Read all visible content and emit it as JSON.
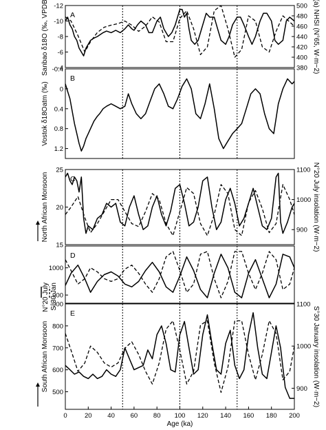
{
  "figure": {
    "x_axis_label": "Age (ka)",
    "x_ticks": [
      "0",
      "20",
      "40",
      "60",
      "80",
      "100",
      "120",
      "140",
      "160",
      "180",
      "200"
    ],
    "vertical_lines_at_age": [
      50,
      100,
      150
    ]
  },
  "chart_data": [
    {
      "type": "line",
      "panel": "A",
      "ylabel_left": "Sanbao δ18O (‰, VPDB)",
      "ylabel_right": "(a) NHSI (N°65, W·m−2)",
      "xlim": [
        0,
        200
      ],
      "ylim_left": [
        -12,
        -4
      ],
      "left_inverted": true,
      "ylim_right": [
        380,
        500
      ],
      "left_ticks": [
        "-12",
        "-10",
        "-8",
        "-6",
        "-4"
      ],
      "right_ticks": [
        "500",
        "480",
        "460",
        "440",
        "420",
        "400",
        "380"
      ],
      "series": [
        {
          "axis": "left",
          "style": "solid",
          "x": [
            0,
            2,
            4,
            6,
            8,
            10,
            12,
            14,
            16,
            18,
            20,
            22,
            25,
            28,
            30,
            33,
            36,
            40,
            44,
            48,
            52,
            55,
            58,
            60,
            63,
            66,
            70,
            73,
            76,
            80,
            83,
            86,
            90,
            93,
            96,
            100,
            102,
            104,
            106,
            108,
            110,
            113,
            116,
            120,
            123,
            126,
            130,
            133,
            136,
            140,
            143,
            146,
            150,
            153,
            156,
            160,
            163,
            166,
            170,
            173,
            176,
            180,
            183,
            186,
            190,
            193,
            196,
            200
          ],
          "y": [
            -10.0,
            -10.5,
            -9.5,
            -9.0,
            -8.0,
            -7.5,
            -6.5,
            -6.0,
            -5.5,
            -6.5,
            -7.0,
            -7.5,
            -7.8,
            -8.0,
            -8.2,
            -8.5,
            -8.7,
            -8.5,
            -8.8,
            -8.5,
            -9.0,
            -9.5,
            -9.0,
            -8.8,
            -9.5,
            -10.0,
            -9.5,
            -8.5,
            -8.5,
            -10.0,
            -10.5,
            -9.0,
            -8.0,
            -8.5,
            -9.5,
            -11.5,
            -11.5,
            -10.5,
            -11.0,
            -9.0,
            -7.5,
            -7.0,
            -7.5,
            -9.5,
            -11.0,
            -10.5,
            -10.5,
            -9.0,
            -7.5,
            -7.0,
            -8.0,
            -9.5,
            -10.5,
            -10.5,
            -9.5,
            -8.0,
            -7.0,
            -8.0,
            -10.0,
            -11.0,
            -11.0,
            -10.0,
            -7.5,
            -7.0,
            -7.5,
            -10.0,
            -10.5,
            -10.0
          ]
        },
        {
          "axis": "right",
          "style": "dashed",
          "x": [
            0,
            5,
            11,
            17,
            22,
            28,
            34,
            40,
            46,
            52,
            58,
            64,
            70,
            76,
            82,
            88,
            94,
            100,
            106,
            112,
            118,
            124,
            130,
            136,
            142,
            148,
            154,
            160,
            166,
            172,
            178,
            184,
            190,
            196,
            200
          ],
          "y": [
            478,
            470,
            442,
            410,
            430,
            448,
            458,
            462,
            465,
            470,
            462,
            450,
            460,
            478,
            468,
            430,
            430,
            475,
            490,
            455,
            405,
            420,
            490,
            500,
            455,
            400,
            415,
            480,
            470,
            420,
            410,
            450,
            480,
            468,
            460
          ]
        }
      ]
    },
    {
      "type": "line",
      "panel": "B",
      "ylabel_left": "Vostok δ18Oatm (‰)",
      "xlim": [
        0,
        200
      ],
      "ylim_left": [
        -0.4,
        1.4
      ],
      "left_inverted": true,
      "left_ticks": [
        "-0.4",
        "0",
        "0.4",
        "0.8",
        "1.2"
      ],
      "series": [
        {
          "axis": "left",
          "style": "solid",
          "x": [
            0,
            2,
            4,
            6,
            8,
            10,
            12,
            14,
            16,
            18,
            20,
            22,
            25,
            28,
            30,
            33,
            36,
            40,
            44,
            48,
            52,
            55,
            58,
            62,
            66,
            70,
            74,
            78,
            82,
            86,
            90,
            94,
            98,
            102,
            106,
            110,
            114,
            118,
            122,
            126,
            130,
            134,
            138,
            142,
            146,
            150,
            154,
            158,
            162,
            166,
            170,
            174,
            178,
            182,
            186,
            190,
            194,
            198,
            200
          ],
          "y": [
            -0.1,
            0.05,
            0.2,
            0.45,
            0.7,
            0.9,
            1.1,
            1.25,
            1.15,
            1.0,
            0.9,
            0.8,
            0.65,
            0.55,
            0.5,
            0.4,
            0.35,
            0.3,
            0.35,
            0.4,
            0.35,
            0.1,
            0.3,
            0.5,
            0.6,
            0.5,
            0.25,
            0.0,
            -0.1,
            0.1,
            0.35,
            0.4,
            0.2,
            -0.05,
            -0.2,
            0.0,
            0.5,
            0.6,
            0.3,
            -0.1,
            0.4,
            1.0,
            1.2,
            1.05,
            0.9,
            0.8,
            0.7,
            0.4,
            0.1,
            0.0,
            0.1,
            0.5,
            0.8,
            0.9,
            0.3,
            0.0,
            -0.2,
            -0.1,
            -0.15
          ]
        }
      ]
    },
    {
      "type": "line",
      "panel": "C",
      "ylabel_left": "North African Monsoon",
      "ylabel_right": "N°20 July insolation (W·m−2)",
      "xlim": [
        0,
        200
      ],
      "ylim_left": [
        15,
        25
      ],
      "ylim_right": [
        850,
        1100
      ],
      "left_ticks": [
        "15",
        "20",
        "25"
      ],
      "right_ticks": [
        "900",
        "1000",
        "1100"
      ],
      "series": [
        {
          "axis": "left",
          "style": "solid",
          "x": [
            0,
            2,
            4,
            6,
            8,
            10,
            12,
            14,
            16,
            18,
            20,
            24,
            28,
            32,
            36,
            40,
            44,
            48,
            52,
            56,
            60,
            64,
            68,
            72,
            76,
            80,
            84,
            88,
            92,
            96,
            100,
            104,
            108,
            112,
            116,
            120,
            124,
            128,
            132,
            136,
            140,
            144,
            148,
            152,
            156,
            160,
            164,
            168,
            172,
            176,
            180,
            184,
            186,
            188,
            190,
            194,
            198,
            200
          ],
          "y": [
            24.0,
            24.5,
            23.5,
            23.0,
            24.0,
            23.5,
            22.0,
            24.0,
            18.5,
            16.5,
            17.5,
            17.0,
            18.5,
            19.0,
            20.5,
            20.0,
            20.5,
            18.0,
            17.5,
            20.0,
            21.5,
            19.0,
            17.0,
            17.5,
            20.0,
            21.5,
            19.0,
            17.5,
            19.5,
            22.5,
            23.0,
            20.5,
            17.5,
            18.0,
            20.0,
            23.5,
            24.0,
            20.0,
            17.0,
            18.0,
            21.0,
            22.5,
            20.5,
            17.5,
            18.5,
            20.5,
            22.5,
            20.0,
            17.5,
            17.0,
            18.5,
            24.0,
            24.5,
            18.0,
            16.5,
            18.0,
            20.0,
            20.5
          ]
        },
        {
          "axis": "right",
          "style": "dashed",
          "x": [
            0,
            5,
            11,
            17,
            22,
            28,
            34,
            40,
            46,
            52,
            58,
            64,
            70,
            76,
            82,
            88,
            94,
            100,
            106,
            112,
            118,
            124,
            130,
            136,
            142,
            148,
            154,
            160,
            166,
            172,
            178,
            184,
            190,
            196,
            200
          ],
          "y": [
            950,
            975,
            1010,
            940,
            890,
            920,
            960,
            1000,
            1000,
            960,
            920,
            910,
            960,
            1020,
            1000,
            920,
            880,
            960,
            1040,
            1020,
            920,
            880,
            950,
            1050,
            1020,
            900,
            880,
            990,
            1030,
            970,
            890,
            920,
            1050,
            1000,
            950
          ]
        }
      ]
    },
    {
      "type": "line",
      "panel": "D",
      "legend": [
        {
          "label": "N°20 July",
          "style": "solid"
        },
        {
          "label": "S°30 Jan",
          "style": "dashed"
        }
      ],
      "xlim": [
        0,
        200
      ],
      "ylim_left": [
        870,
        1080
      ],
      "left_ticks": [
        "1000",
        "900"
      ],
      "series": [
        {
          "name": "N°20 July",
          "axis": "left",
          "style": "solid",
          "x": [
            0,
            5,
            11,
            17,
            22,
            28,
            34,
            40,
            46,
            52,
            58,
            64,
            70,
            76,
            82,
            88,
            94,
            100,
            106,
            112,
            118,
            124,
            130,
            136,
            142,
            148,
            154,
            160,
            166,
            172,
            178,
            184,
            190,
            196,
            200
          ],
          "y": [
            935,
            980,
            1010,
            960,
            910,
            950,
            975,
            985,
            970,
            940,
            930,
            950,
            990,
            1020,
            985,
            930,
            910,
            970,
            1040,
            990,
            920,
            890,
            980,
            1050,
            1000,
            910,
            890,
            980,
            1030,
            960,
            890,
            940,
            1050,
            1040,
            1000
          ]
        },
        {
          "name": "S°30 Jan",
          "axis": "left",
          "style": "dashed",
          "x": [
            0,
            5,
            11,
            17,
            22,
            28,
            34,
            40,
            46,
            52,
            58,
            64,
            70,
            76,
            82,
            88,
            94,
            100,
            106,
            112,
            118,
            124,
            130,
            136,
            142,
            148,
            154,
            160,
            166,
            172,
            178,
            184,
            190,
            196,
            200
          ],
          "y": [
            1030,
            990,
            940,
            960,
            1000,
            985,
            960,
            950,
            960,
            995,
            1010,
            980,
            940,
            910,
            960,
            1040,
            1060,
            990,
            910,
            940,
            1050,
            1060,
            960,
            890,
            950,
            1060,
            1060,
            980,
            920,
            980,
            1060,
            1030,
            920,
            940,
            1000
          ]
        }
      ]
    },
    {
      "type": "line",
      "panel": "E",
      "ylabel_left": "South African Monsoon",
      "ylabel_right": "S°30 January insolation (W·m−2)",
      "xlim": [
        0,
        200
      ],
      "ylim_left": [
        420,
        900
      ],
      "ylim_right": [
        850,
        1100
      ],
      "left_ticks": [
        "500",
        "600",
        "700",
        "800",
        "900"
      ],
      "right_ticks": [
        "900",
        "1000",
        "1100"
      ],
      "series": [
        {
          "axis": "left",
          "style": "solid",
          "x": [
            0,
            4,
            8,
            12,
            16,
            20,
            24,
            28,
            32,
            36,
            40,
            44,
            48,
            52,
            56,
            60,
            64,
            68,
            72,
            76,
            80,
            84,
            88,
            92,
            96,
            100,
            104,
            108,
            112,
            116,
            120,
            124,
            128,
            132,
            136,
            140,
            144,
            148,
            152,
            156,
            160,
            164,
            168,
            172,
            176,
            180,
            184,
            188,
            192,
            196,
            200
          ],
          "y": [
            620,
            600,
            580,
            590,
            570,
            560,
            580,
            560,
            570,
            600,
            580,
            570,
            600,
            700,
            650,
            600,
            610,
            620,
            690,
            650,
            760,
            800,
            720,
            600,
            590,
            760,
            820,
            700,
            580,
            600,
            760,
            850,
            720,
            600,
            580,
            720,
            780,
            620,
            560,
            600,
            760,
            860,
            700,
            580,
            560,
            680,
            800,
            700,
            520,
            470,
            470
          ]
        },
        {
          "axis": "right",
          "style": "dashed",
          "x": [
            0,
            5,
            11,
            17,
            22,
            28,
            34,
            40,
            46,
            52,
            58,
            64,
            70,
            76,
            82,
            88,
            94,
            100,
            106,
            112,
            118,
            124,
            130,
            136,
            142,
            148,
            154,
            160,
            166,
            172,
            178,
            184,
            190,
            196,
            200
          ],
          "y": [
            1030,
            990,
            940,
            960,
            1000,
            985,
            960,
            950,
            960,
            995,
            1010,
            980,
            940,
            910,
            960,
            1040,
            1060,
            990,
            910,
            940,
            1050,
            1060,
            960,
            890,
            950,
            1060,
            1060,
            980,
            920,
            980,
            1060,
            1030,
            920,
            940,
            1000
          ]
        }
      ]
    }
  ]
}
